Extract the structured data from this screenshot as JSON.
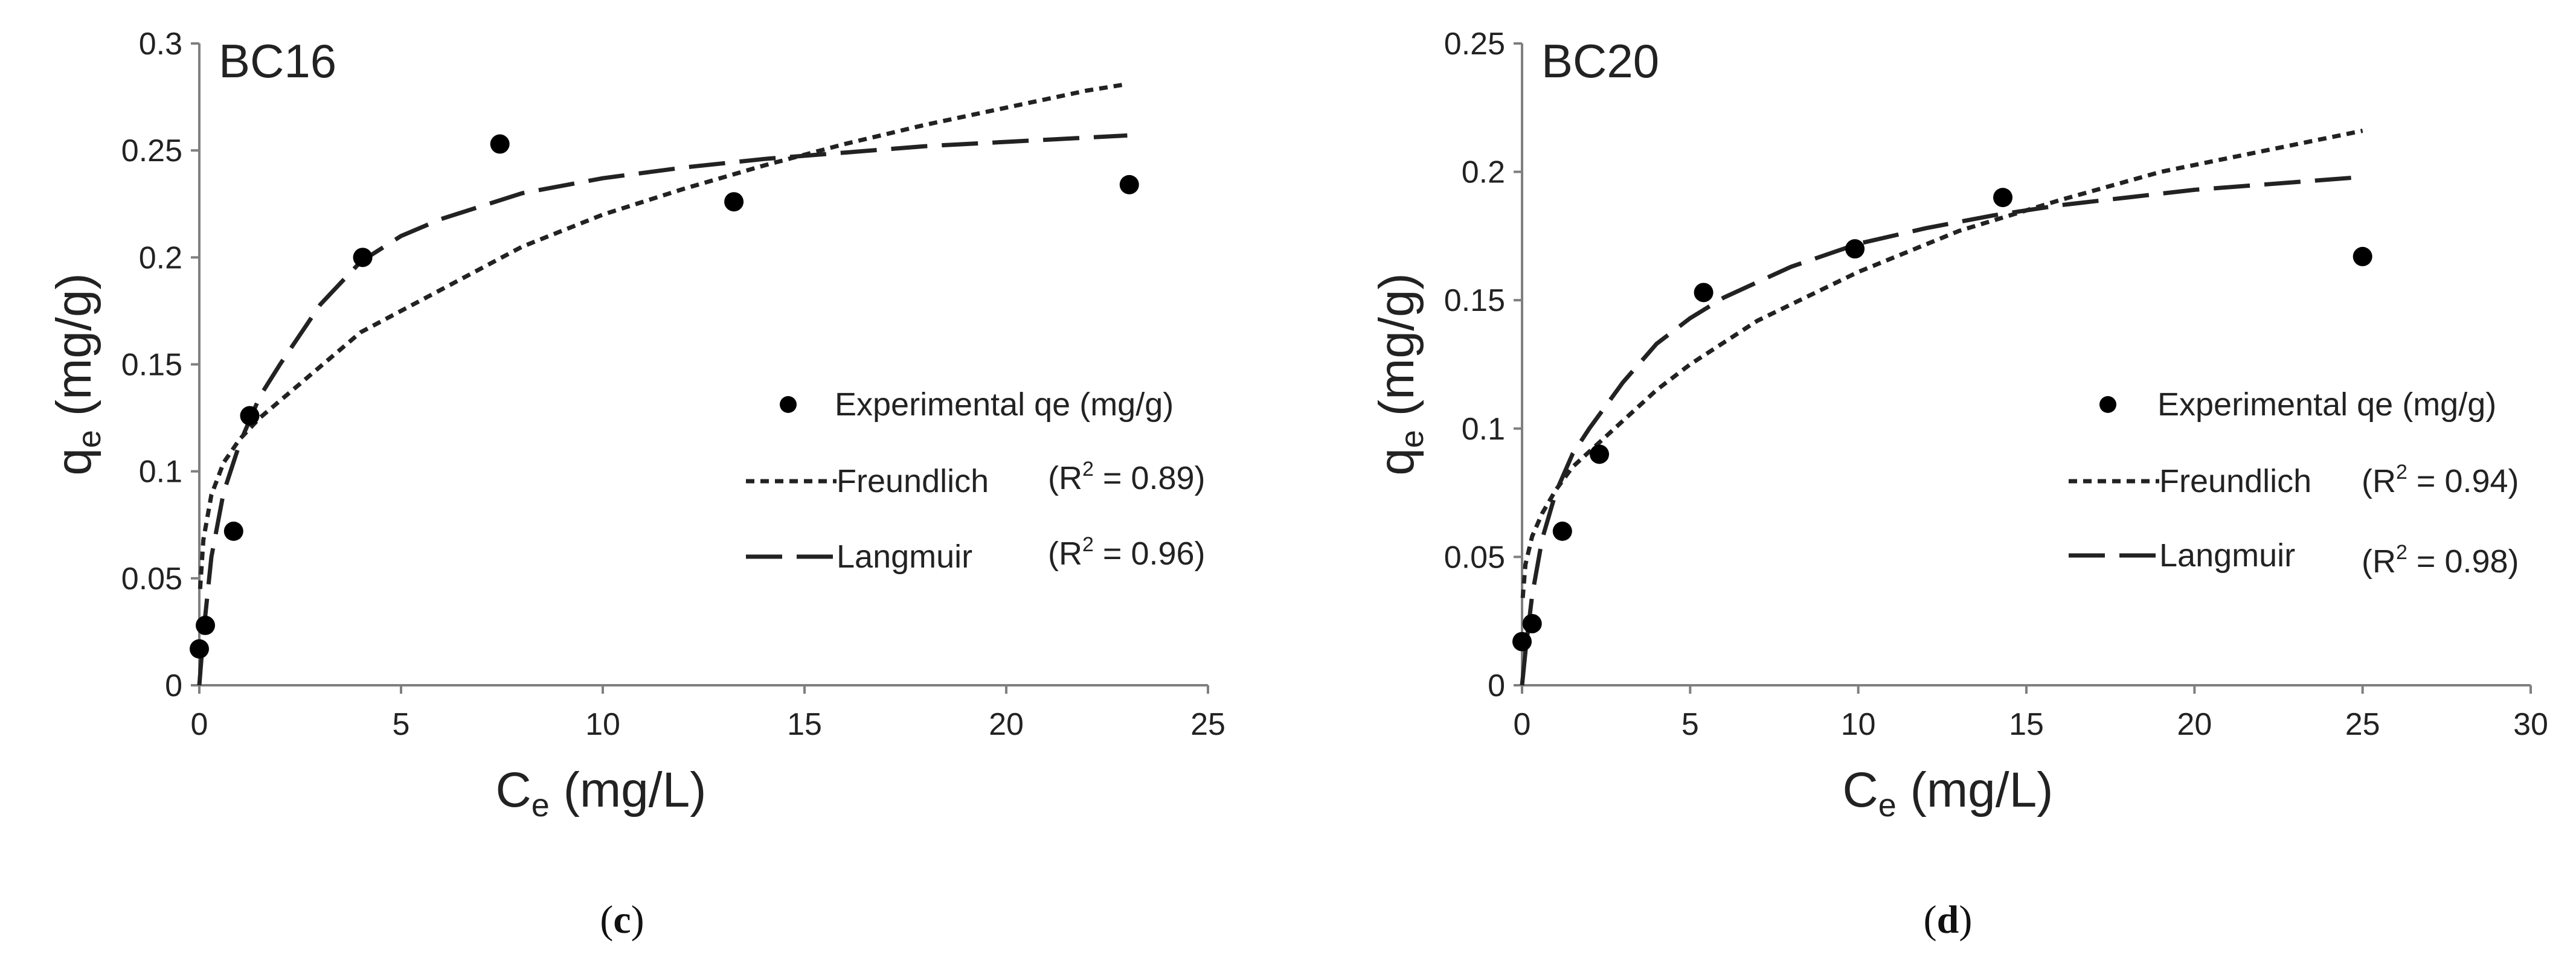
{
  "chart_data": [
    {
      "type": "scatter",
      "title": "BC16",
      "caption": "c",
      "xlabel": "C",
      "xlabel_sub": "e",
      "xlabel_unit": " (mg/L)",
      "ylabel": "q",
      "ylabel_sub": "e",
      "ylabel_unit": " (mg/g)",
      "xlim": [
        0,
        25
      ],
      "ylim": [
        0,
        0.3
      ],
      "xticks": [
        0,
        5,
        10,
        15,
        20,
        25
      ],
      "xtick_labels": [
        "0",
        "5",
        "10",
        "15",
        "20",
        "25"
      ],
      "yticks": [
        0,
        0.05,
        0.1,
        0.15,
        0.2,
        0.25,
        0.3
      ],
      "ytick_labels": [
        "0",
        "0.05",
        "0.1",
        "0.15",
        "0.2",
        "0.25",
        "0.3"
      ],
      "legend": {
        "experimental": "Experimental qe (mg/g)",
        "freundlich": "Freundlich",
        "freundlich_r2_prefix": "(R",
        "freundlich_r2_value": " = 0.89)",
        "langmuir": "Langmuir",
        "langmuir_r2_prefix": "(R",
        "langmuir_r2_value": " = 0.96)",
        "sup": "2"
      },
      "series": [
        {
          "name": "Experimental qe (mg/g)",
          "kind": "points",
          "x": [
            0.0,
            0.15,
            0.85,
            1.25,
            4.05,
            7.45,
            13.25,
            23.05
          ],
          "y": [
            0.017,
            0.028,
            0.072,
            0.126,
            0.2,
            0.253,
            0.226,
            0.234
          ]
        },
        {
          "name": "Freundlich",
          "kind": "curve",
          "x": [
            0.02,
            0.1,
            0.3,
            0.6,
            1.0,
            1.5,
            2.5,
            4.0,
            6.0,
            8.0,
            10.0,
            12.0,
            14.0,
            16.0,
            18.0,
            20.0,
            22.0,
            23.0
          ],
          "y": [
            0.045,
            0.068,
            0.089,
            0.104,
            0.115,
            0.125,
            0.141,
            0.165,
            0.185,
            0.205,
            0.22,
            0.232,
            0.243,
            0.253,
            0.262,
            0.27,
            0.278,
            0.281
          ]
        },
        {
          "name": "Langmuir",
          "kind": "curve",
          "x": [
            0.0,
            0.1,
            0.3,
            0.6,
            1.0,
            1.5,
            2.0,
            3.0,
            4.0,
            5.0,
            6.0,
            8.0,
            10.0,
            12.0,
            14.0,
            16.0,
            18.0,
            20.0,
            22.0,
            23.0
          ],
          "y": [
            0.0,
            0.024,
            0.06,
            0.09,
            0.113,
            0.135,
            0.15,
            0.178,
            0.198,
            0.21,
            0.218,
            0.23,
            0.237,
            0.242,
            0.246,
            0.249,
            0.252,
            0.254,
            0.256,
            0.257
          ]
        }
      ]
    },
    {
      "type": "scatter",
      "title": "BC20",
      "caption": "d",
      "xlabel": "C",
      "xlabel_sub": "e",
      "xlabel_unit": " (mg/L)",
      "ylabel": "q",
      "ylabel_sub": "e",
      "ylabel_unit": " (mg/g)",
      "xlim": [
        0,
        30
      ],
      "ylim": [
        0,
        0.25
      ],
      "xticks": [
        0,
        5,
        10,
        15,
        20,
        25,
        30
      ],
      "xtick_labels": [
        "0",
        "5",
        "10",
        "15",
        "20",
        "25",
        "30"
      ],
      "yticks": [
        0,
        0.05,
        0.1,
        0.15,
        0.2,
        0.25
      ],
      "ytick_labels": [
        "0",
        "0.05",
        "0.1",
        "0.15",
        "0.2",
        "0.25"
      ],
      "legend": {
        "experimental": "Experimental qe (mg/g)",
        "freundlich": "Freundlich",
        "freundlich_r2_prefix": "(R",
        "freundlich_r2_value": " = 0.94)",
        "langmuir": "Langmuir",
        "langmuir_r2_prefix": "(R",
        "langmuir_r2_value": " = 0.98)",
        "sup": "2"
      },
      "series": [
        {
          "name": "Experimental qe (mg/g)",
          "kind": "points",
          "x": [
            0.0,
            0.3,
            1.2,
            2.3,
            5.4,
            9.9,
            14.3,
            25.0
          ],
          "y": [
            0.017,
            0.024,
            0.06,
            0.09,
            0.153,
            0.17,
            0.19,
            0.167
          ]
        },
        {
          "name": "Freundlich",
          "kind": "curve",
          "x": [
            0.02,
            0.1,
            0.3,
            0.6,
            1.0,
            1.5,
            2.0,
            3.0,
            4.0,
            5.0,
            7.0,
            10.0,
            13.0,
            16.0,
            19.0,
            22.0,
            25.0
          ],
          "y": [
            0.034,
            0.047,
            0.058,
            0.067,
            0.076,
            0.085,
            0.091,
            0.103,
            0.115,
            0.125,
            0.142,
            0.161,
            0.177,
            0.189,
            0.2,
            0.208,
            0.216
          ]
        },
        {
          "name": "Langmuir",
          "kind": "curve",
          "x": [
            0.0,
            0.1,
            0.3,
            0.6,
            1.0,
            1.5,
            2.0,
            3.0,
            4.0,
            5.0,
            6.0,
            8.0,
            10.0,
            12.0,
            14.0,
            16.0,
            18.0,
            20.0,
            22.0,
            25.0
          ],
          "y": [
            0.0,
            0.013,
            0.035,
            0.057,
            0.075,
            0.09,
            0.1,
            0.118,
            0.133,
            0.143,
            0.151,
            0.163,
            0.172,
            0.178,
            0.183,
            0.187,
            0.19,
            0.193,
            0.195,
            0.198
          ]
        }
      ]
    }
  ]
}
